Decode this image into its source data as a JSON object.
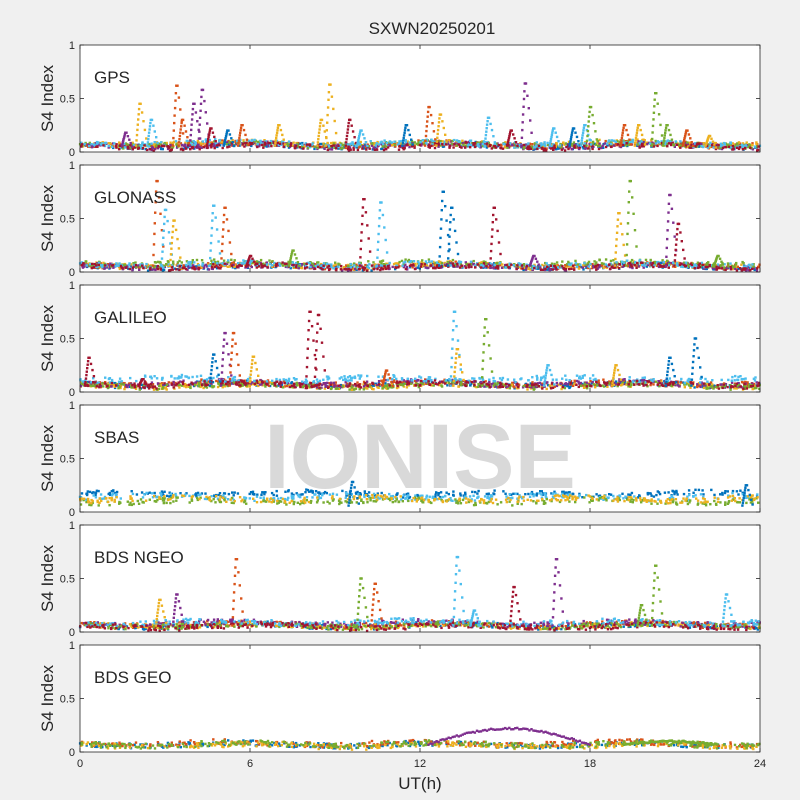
{
  "figure_title": "SXWN20250201",
  "watermark": "IONISE",
  "x_axis_label": "UT(h)",
  "x_tick_labels": [
    "0",
    "6",
    "12",
    "18",
    "24"
  ],
  "y_tick_labels": [
    "0",
    "0.5",
    "1"
  ],
  "colors": {
    "background": "#f0f0f0",
    "axes_face": "#ffffff",
    "axes_edge": "#262626",
    "watermark": "#d9d9d9",
    "palette": [
      "#0072BD",
      "#D95319",
      "#EDB120",
      "#7E2F8E",
      "#77AC30",
      "#4DBEEE",
      "#A2142F"
    ]
  },
  "chart_data": [
    {
      "type": "scatter",
      "label": "GPS",
      "ylabel": "S4 Index",
      "xlim": [
        0,
        24
      ],
      "ylim": [
        0,
        1
      ],
      "xticks": [
        0,
        6,
        12,
        18,
        24
      ],
      "yticks": [
        0,
        0.5,
        1
      ],
      "grid": false,
      "baseline": [
        {
          "color": "#0072BD",
          "level": 0.06
        },
        {
          "color": "#D95319",
          "level": 0.07
        },
        {
          "color": "#EDB120",
          "level": 0.08
        },
        {
          "color": "#7E2F8E",
          "level": 0.06
        },
        {
          "color": "#77AC30",
          "level": 0.07
        },
        {
          "color": "#4DBEEE",
          "level": 0.08
        },
        {
          "color": "#A2142F",
          "level": 0.05
        }
      ],
      "spikes": [
        {
          "x": 1.6,
          "peak": 0.18,
          "color": "#7E2F8E"
        },
        {
          "x": 2.1,
          "peak": 0.45,
          "color": "#EDB120"
        },
        {
          "x": 2.5,
          "peak": 0.3,
          "color": "#4DBEEE"
        },
        {
          "x": 3.4,
          "peak": 0.62,
          "color": "#D95319"
        },
        {
          "x": 3.6,
          "peak": 0.3,
          "color": "#D95319"
        },
        {
          "x": 4.0,
          "peak": 0.45,
          "color": "#7E2F8E"
        },
        {
          "x": 4.3,
          "peak": 0.58,
          "color": "#7E2F8E"
        },
        {
          "x": 4.6,
          "peak": 0.22,
          "color": "#A2142F"
        },
        {
          "x": 5.2,
          "peak": 0.2,
          "color": "#0072BD"
        },
        {
          "x": 5.7,
          "peak": 0.25,
          "color": "#D95319"
        },
        {
          "x": 7.0,
          "peak": 0.25,
          "color": "#EDB120"
        },
        {
          "x": 8.5,
          "peak": 0.3,
          "color": "#EDB120"
        },
        {
          "x": 8.8,
          "peak": 0.63,
          "color": "#EDB120"
        },
        {
          "x": 9.5,
          "peak": 0.3,
          "color": "#A2142F"
        },
        {
          "x": 9.9,
          "peak": 0.2,
          "color": "#4DBEEE"
        },
        {
          "x": 11.5,
          "peak": 0.25,
          "color": "#0072BD"
        },
        {
          "x": 12.3,
          "peak": 0.42,
          "color": "#D95319"
        },
        {
          "x": 12.7,
          "peak": 0.35,
          "color": "#EDB120"
        },
        {
          "x": 14.4,
          "peak": 0.32,
          "color": "#4DBEEE"
        },
        {
          "x": 15.2,
          "peak": 0.2,
          "color": "#A2142F"
        },
        {
          "x": 15.7,
          "peak": 0.64,
          "color": "#7E2F8E"
        },
        {
          "x": 16.7,
          "peak": 0.22,
          "color": "#4DBEEE"
        },
        {
          "x": 17.4,
          "peak": 0.22,
          "color": "#0072BD"
        },
        {
          "x": 17.8,
          "peak": 0.25,
          "color": "#4DBEEE"
        },
        {
          "x": 18.0,
          "peak": 0.42,
          "color": "#77AC30"
        },
        {
          "x": 19.2,
          "peak": 0.25,
          "color": "#D95319"
        },
        {
          "x": 19.7,
          "peak": 0.25,
          "color": "#EDB120"
        },
        {
          "x": 20.3,
          "peak": 0.55,
          "color": "#77AC30"
        },
        {
          "x": 20.7,
          "peak": 0.25,
          "color": "#77AC30"
        },
        {
          "x": 21.4,
          "peak": 0.2,
          "color": "#D95319"
        },
        {
          "x": 22.2,
          "peak": 0.15,
          "color": "#EDB120"
        }
      ]
    },
    {
      "type": "scatter",
      "label": "GLONASS",
      "ylabel": "S4 Index",
      "xlim": [
        0,
        24
      ],
      "ylim": [
        0,
        1
      ],
      "xticks": [
        0,
        6,
        12,
        18,
        24
      ],
      "yticks": [
        0,
        0.5,
        1
      ],
      "grid": false,
      "baseline": [
        {
          "color": "#0072BD",
          "level": 0.05
        },
        {
          "color": "#D95319",
          "level": 0.06
        },
        {
          "color": "#EDB120",
          "level": 0.06
        },
        {
          "color": "#7E2F8E",
          "level": 0.05
        },
        {
          "color": "#77AC30",
          "level": 0.08
        },
        {
          "color": "#4DBEEE",
          "level": 0.07
        },
        {
          "color": "#A2142F",
          "level": 0.05
        }
      ],
      "spikes": [
        {
          "x": 2.7,
          "peak": 0.85,
          "color": "#D95319"
        },
        {
          "x": 3.0,
          "peak": 0.58,
          "color": "#4DBEEE"
        },
        {
          "x": 3.3,
          "peak": 0.48,
          "color": "#EDB120"
        },
        {
          "x": 4.7,
          "peak": 0.62,
          "color": "#4DBEEE"
        },
        {
          "x": 5.1,
          "peak": 0.6,
          "color": "#D95319"
        },
        {
          "x": 6.0,
          "peak": 0.15,
          "color": "#A2142F"
        },
        {
          "x": 7.5,
          "peak": 0.2,
          "color": "#77AC30"
        },
        {
          "x": 10.0,
          "peak": 0.68,
          "color": "#A2142F"
        },
        {
          "x": 10.6,
          "peak": 0.65,
          "color": "#4DBEEE"
        },
        {
          "x": 12.8,
          "peak": 0.75,
          "color": "#0072BD"
        },
        {
          "x": 13.1,
          "peak": 0.6,
          "color": "#0072BD"
        },
        {
          "x": 14.6,
          "peak": 0.6,
          "color": "#A2142F"
        },
        {
          "x": 16.0,
          "peak": 0.15,
          "color": "#7E2F8E"
        },
        {
          "x": 19.0,
          "peak": 0.55,
          "color": "#EDB120"
        },
        {
          "x": 19.4,
          "peak": 0.85,
          "color": "#77AC30"
        },
        {
          "x": 20.8,
          "peak": 0.72,
          "color": "#7E2F8E"
        },
        {
          "x": 21.1,
          "peak": 0.45,
          "color": "#A2142F"
        },
        {
          "x": 22.5,
          "peak": 0.15,
          "color": "#77AC30"
        }
      ]
    },
    {
      "type": "scatter",
      "label": "GALILEO",
      "ylabel": "S4 Index",
      "xlim": [
        0,
        24
      ],
      "ylim": [
        0,
        1
      ],
      "xticks": [
        0,
        6,
        12,
        18,
        24
      ],
      "yticks": [
        0,
        0.5,
        1
      ],
      "grid": false,
      "baseline": [
        {
          "color": "#0072BD",
          "level": 0.07
        },
        {
          "color": "#D95319",
          "level": 0.08
        },
        {
          "color": "#EDB120",
          "level": 0.06
        },
        {
          "color": "#7E2F8E",
          "level": 0.08
        },
        {
          "color": "#77AC30",
          "level": 0.06
        },
        {
          "color": "#4DBEEE",
          "level": 0.12
        },
        {
          "color": "#A2142F",
          "level": 0.07
        }
      ],
      "spikes": [
        {
          "x": 0.3,
          "peak": 0.32,
          "color": "#A2142F"
        },
        {
          "x": 2.2,
          "peak": 0.12,
          "color": "#A2142F"
        },
        {
          "x": 4.7,
          "peak": 0.35,
          "color": "#0072BD"
        },
        {
          "x": 5.1,
          "peak": 0.55,
          "color": "#7E2F8E"
        },
        {
          "x": 5.4,
          "peak": 0.55,
          "color": "#D95319"
        },
        {
          "x": 6.1,
          "peak": 0.33,
          "color": "#EDB120"
        },
        {
          "x": 8.1,
          "peak": 0.75,
          "color": "#A2142F"
        },
        {
          "x": 8.4,
          "peak": 0.72,
          "color": "#A2142F"
        },
        {
          "x": 10.8,
          "peak": 0.2,
          "color": "#D95319"
        },
        {
          "x": 13.2,
          "peak": 0.75,
          "color": "#4DBEEE"
        },
        {
          "x": 13.3,
          "peak": 0.4,
          "color": "#EDB120"
        },
        {
          "x": 14.3,
          "peak": 0.68,
          "color": "#77AC30"
        },
        {
          "x": 16.5,
          "peak": 0.25,
          "color": "#4DBEEE"
        },
        {
          "x": 18.9,
          "peak": 0.25,
          "color": "#EDB120"
        },
        {
          "x": 20.8,
          "peak": 0.32,
          "color": "#0072BD"
        },
        {
          "x": 21.7,
          "peak": 0.5,
          "color": "#0072BD"
        }
      ]
    },
    {
      "type": "scatter",
      "label": "SBAS",
      "ylabel": "S4 Index",
      "xlim": [
        0,
        24
      ],
      "ylim": [
        0,
        1
      ],
      "xticks": [
        0,
        6,
        12,
        18,
        24
      ],
      "yticks": [
        0,
        0.5,
        1
      ],
      "grid": false,
      "baseline": [
        {
          "color": "#0072BD",
          "level": 0.17
        },
        {
          "color": "#4DBEEE",
          "level": 0.14
        },
        {
          "color": "#77AC30",
          "level": 0.1
        },
        {
          "color": "#EDB120",
          "level": 0.12
        }
      ],
      "spikes": [
        {
          "x": 9.6,
          "peak": 0.28,
          "color": "#0072BD"
        },
        {
          "x": 23.5,
          "peak": 0.25,
          "color": "#0072BD"
        }
      ]
    },
    {
      "type": "scatter",
      "label": "BDS NGEO",
      "ylabel": "S4 Index",
      "xlim": [
        0,
        24
      ],
      "ylim": [
        0,
        1
      ],
      "xticks": [
        0,
        6,
        12,
        18,
        24
      ],
      "yticks": [
        0,
        0.5,
        1
      ],
      "grid": false,
      "baseline": [
        {
          "color": "#0072BD",
          "level": 0.06
        },
        {
          "color": "#D95319",
          "level": 0.07
        },
        {
          "color": "#EDB120",
          "level": 0.06
        },
        {
          "color": "#7E2F8E",
          "level": 0.08
        },
        {
          "color": "#77AC30",
          "level": 0.06
        },
        {
          "color": "#4DBEEE",
          "level": 0.09
        },
        {
          "color": "#A2142F",
          "level": 0.05
        }
      ],
      "spikes": [
        {
          "x": 2.8,
          "peak": 0.3,
          "color": "#EDB120"
        },
        {
          "x": 3.4,
          "peak": 0.35,
          "color": "#7E2F8E"
        },
        {
          "x": 5.5,
          "peak": 0.68,
          "color": "#D95319"
        },
        {
          "x": 9.9,
          "peak": 0.5,
          "color": "#77AC30"
        },
        {
          "x": 10.4,
          "peak": 0.45,
          "color": "#D95319"
        },
        {
          "x": 13.3,
          "peak": 0.7,
          "color": "#4DBEEE"
        },
        {
          "x": 13.9,
          "peak": 0.2,
          "color": "#4DBEEE"
        },
        {
          "x": 15.3,
          "peak": 0.42,
          "color": "#A2142F"
        },
        {
          "x": 16.8,
          "peak": 0.68,
          "color": "#7E2F8E"
        },
        {
          "x": 19.8,
          "peak": 0.25,
          "color": "#77AC30"
        },
        {
          "x": 20.3,
          "peak": 0.62,
          "color": "#77AC30"
        },
        {
          "x": 22.8,
          "peak": 0.35,
          "color": "#4DBEEE"
        }
      ]
    },
    {
      "type": "scatter",
      "label": "BDS GEO",
      "ylabel": "S4 Index",
      "xlim": [
        0,
        24
      ],
      "ylim": [
        0,
        1
      ],
      "xticks": [
        0,
        6,
        12,
        18,
        24
      ],
      "yticks": [
        0,
        0.5,
        1
      ],
      "grid": false,
      "baseline": [
        {
          "color": "#0072BD",
          "level": 0.07
        },
        {
          "color": "#D95319",
          "level": 0.08
        },
        {
          "color": "#EDB120",
          "level": 0.06
        },
        {
          "color": "#77AC30",
          "level": 0.07
        }
      ],
      "arcs": [
        {
          "x_start": 12.3,
          "x_end": 18.0,
          "peak": 0.22,
          "color": "#7E2F8E"
        },
        {
          "x_start": 19.2,
          "x_end": 22.5,
          "peak": 0.1,
          "color": "#77AC30"
        }
      ],
      "spikes": []
    }
  ]
}
